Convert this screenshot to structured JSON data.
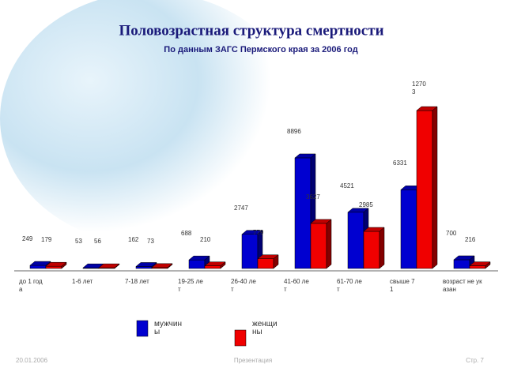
{
  "chart_data": {
    "type": "bar3d",
    "title": "Половозрастная структура смертности",
    "subtitle": "По данным ЗАГС Пермского края за 2006 год",
    "categories": [
      "до 1 года",
      "1-6 лет",
      "7-18 лет",
      "19-25 лет",
      "26-40 лет",
      "41-60 лет",
      "61-70 лет",
      "свыше 71",
      "возраст не указан"
    ],
    "series": [
      {
        "name": "мужчины",
        "color": "#0000d0",
        "values": [
          249,
          53,
          162,
          688,
          2747,
          8896,
          4521,
          6331,
          700
        ]
      },
      {
        "name": "женщины",
        "color": "#f00000",
        "values": [
          179,
          56,
          73,
          210,
          779,
          3627,
          2985,
          12703,
          216
        ]
      }
    ]
  },
  "footer": {
    "date": "20.01.2006",
    "center": "Презентация",
    "page": "Стр. 7"
  }
}
